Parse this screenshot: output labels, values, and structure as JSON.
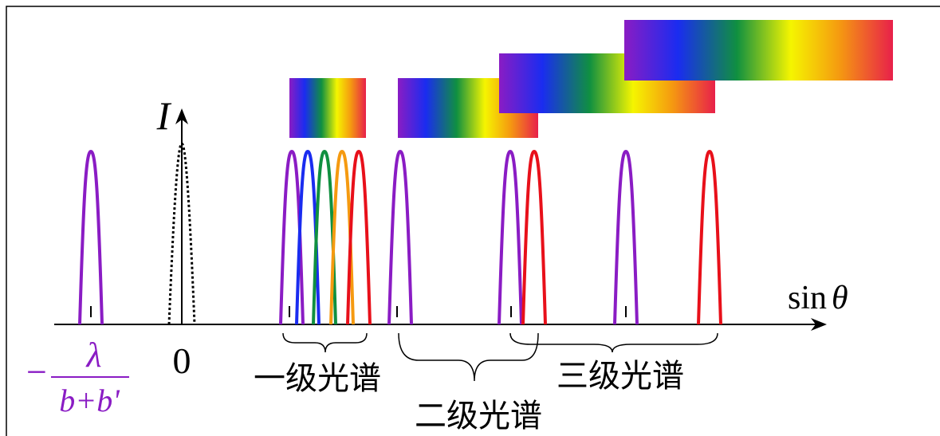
{
  "axes": {
    "y_label": "I",
    "x_label_func": "sin",
    "x_label_var": "θ",
    "origin_label": "0"
  },
  "negative_first_order": {
    "sign": "−",
    "numerator": "λ",
    "denominator": "b+b'"
  },
  "spectra": [
    {
      "label": "一级光谱"
    },
    {
      "label": "二级光谱"
    },
    {
      "label": "三级光谱"
    }
  ]
}
